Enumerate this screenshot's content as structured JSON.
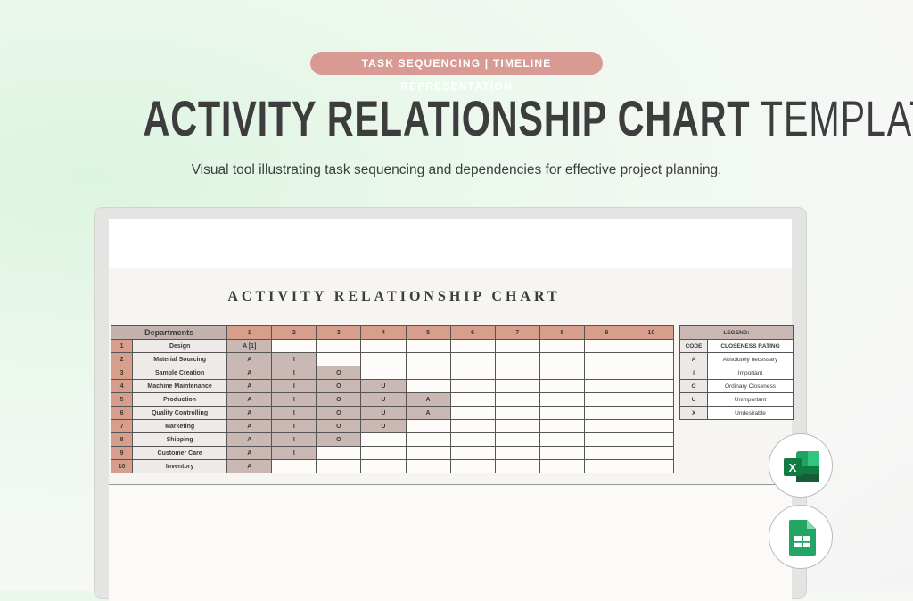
{
  "header": {
    "tagline": "TASK SEQUENCING  |  TIMELINE REPRESENTATION",
    "title_bold": "ACTIVITY RELATIONSHIP CHART",
    "title_light": "TEMPLATE",
    "subtitle": "Visual tool illustrating task sequencing and dependencies for effective project planning."
  },
  "sheet": {
    "title": "ACTIVITY RELATIONSHIP CHART",
    "departments_header": "Departments",
    "columns": [
      "1",
      "2",
      "3",
      "4",
      "5",
      "6",
      "7",
      "8",
      "9",
      "10"
    ],
    "rows": [
      {
        "num": "1",
        "dept": "Design",
        "cells": [
          "A [1]"
        ]
      },
      {
        "num": "2",
        "dept": "Material Sourcing",
        "cells": [
          "A",
          "I"
        ]
      },
      {
        "num": "3",
        "dept": "Sample Creation",
        "cells": [
          "A",
          "I",
          "O"
        ]
      },
      {
        "num": "4",
        "dept": "Machine Maintenance",
        "cells": [
          "A",
          "I",
          "O",
          "U"
        ]
      },
      {
        "num": "5",
        "dept": "Production",
        "cells": [
          "A",
          "I",
          "O",
          "U",
          "A"
        ]
      },
      {
        "num": "6",
        "dept": "Quality Controlling",
        "cells": [
          "A",
          "I",
          "O",
          "U",
          "A"
        ]
      },
      {
        "num": "7",
        "dept": "Marketing",
        "cells": [
          "A",
          "I",
          "O",
          "U"
        ]
      },
      {
        "num": "8",
        "dept": "Shipping",
        "cells": [
          "A",
          "I",
          "O"
        ]
      },
      {
        "num": "9",
        "dept": "Customer Care",
        "cells": [
          "A",
          "I"
        ]
      },
      {
        "num": "10",
        "dept": "Inventory",
        "cells": [
          "A"
        ]
      }
    ],
    "legend": {
      "title": "LEGEND:",
      "code_header": "CODE",
      "rating_header": "CLOSENESS RATING",
      "items": [
        {
          "code": "A",
          "rating": "Absolutely necessary"
        },
        {
          "code": "I",
          "rating": "Important"
        },
        {
          "code": "O",
          "rating": "Ordinary Closeness"
        },
        {
          "code": "U",
          "rating": "Unimportant"
        },
        {
          "code": "X",
          "rating": "Undesirable"
        }
      ]
    }
  },
  "apps": [
    "excel-icon",
    "google-sheets-icon"
  ],
  "colors": {
    "accent": "#d79f8b",
    "shaded": "#c9b8b4",
    "pill": "#d99a94"
  }
}
